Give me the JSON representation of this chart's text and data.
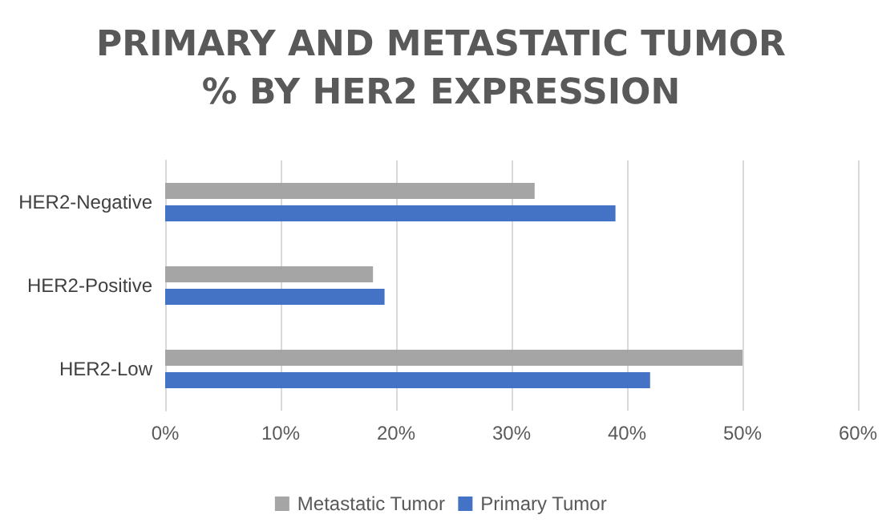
{
  "chart_data": {
    "type": "bar",
    "orientation": "horizontal",
    "title": "PRIMARY AND METASTATIC TUMOR\n% BY HER2 EXPRESSION",
    "categories": [
      "HER2-Negative",
      "HER2-Positive",
      "HER2-Low"
    ],
    "series": [
      {
        "name": "Metastatic Tumor",
        "color": "#a5a5a5",
        "values": [
          32,
          18,
          50
        ]
      },
      {
        "name": "Primary Tumor",
        "color": "#4472c4",
        "values": [
          39,
          19,
          42
        ]
      }
    ],
    "xlim": [
      0,
      60
    ],
    "xticks": [
      {
        "value": 0,
        "label": "0%"
      },
      {
        "value": 10,
        "label": "10%"
      },
      {
        "value": 20,
        "label": "20%"
      },
      {
        "value": 30,
        "label": "30%"
      },
      {
        "value": 40,
        "label": "40%"
      },
      {
        "value": 50,
        "label": "50%"
      },
      {
        "value": 60,
        "label": "60%"
      }
    ],
    "grid": "x",
    "legend": "bottom"
  }
}
